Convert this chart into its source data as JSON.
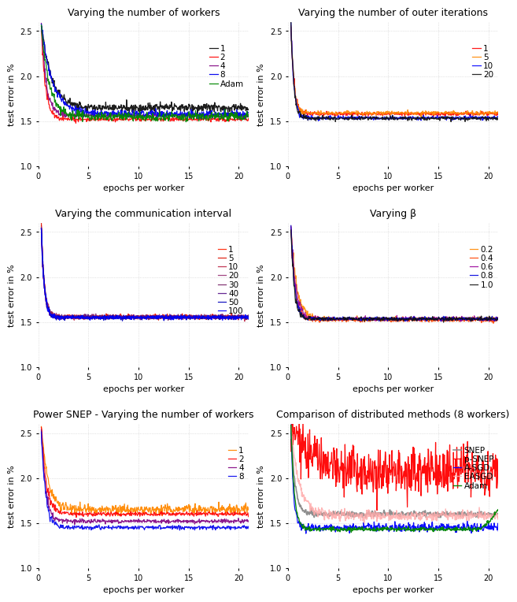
{
  "titles": [
    "Varying the number of workers",
    "Varying the number of outer iterations",
    "Varying the communication interval",
    "Varying β",
    "Power SNEP - Varying the number of workers",
    "Comparison of distributed methods (8 workers)"
  ],
  "xlabel": "epochs per worker",
  "ylabel": "test error in %",
  "xlim": [
    0,
    21
  ],
  "ylim": [
    1.0,
    2.6
  ],
  "yticks": [
    1.0,
    1.5,
    2.0,
    2.5
  ],
  "xticks": [
    0,
    5,
    10,
    15,
    20
  ],
  "plot1_labels": [
    "1",
    "2",
    "4",
    "8",
    "Adam"
  ],
  "plot1_colors": [
    "#111111",
    "#ff0000",
    "#800080",
    "#0000ee",
    "#008800"
  ],
  "plot1_levels": [
    1.65,
    1.52,
    1.56,
    1.58,
    1.55
  ],
  "plot1_speeds": [
    1.2,
    2.5,
    2.0,
    1.2,
    1.5
  ],
  "plot1_start": 2.57,
  "plot2_labels": [
    "1",
    "5",
    "10",
    "20"
  ],
  "plot2_colors": [
    "#ff0000",
    "#ff8800",
    "#0000ff",
    "#111111"
  ],
  "plot2_levels": [
    1.58,
    1.59,
    1.535,
    1.53
  ],
  "plot2_speeds": [
    3.5,
    3.5,
    3.5,
    3.5
  ],
  "plot2_start": 2.57,
  "plot3_labels": [
    "1",
    "5",
    "10",
    "20",
    "30",
    "40",
    "50",
    "100"
  ],
  "plot3_colors": [
    "#ff2200",
    "#dd1100",
    "#bb2244",
    "#993377",
    "#772266",
    "#551188",
    "#0000bb",
    "#0000ff"
  ],
  "plot3_levels": [
    1.56,
    1.555,
    1.555,
    1.555,
    1.555,
    1.555,
    1.55,
    1.55
  ],
  "plot3_speeds": [
    3.5,
    3.5,
    3.5,
    3.5,
    3.5,
    3.5,
    3.5,
    3.5
  ],
  "plot3_start": 2.56,
  "plot4_labels": [
    "0.2",
    "0.4",
    "0.6",
    "0.8",
    "1.0"
  ],
  "plot4_colors": [
    "#ff8800",
    "#ff4400",
    "#990099",
    "#0000dd",
    "#111111"
  ],
  "plot4_levels": [
    1.535,
    1.52,
    1.535,
    1.535,
    1.535
  ],
  "plot4_speeds": [
    1.8,
    2.5,
    2.2,
    2.8,
    3.2
  ],
  "plot4_start": 2.56,
  "plot5_labels": [
    "1",
    "2",
    "4",
    "8"
  ],
  "plot5_colors": [
    "#ff8800",
    "#ff0000",
    "#800080",
    "#0000ee"
  ],
  "plot5_levels": [
    1.65,
    1.6,
    1.52,
    1.45
  ],
  "plot5_speeds": [
    1.5,
    2.0,
    2.5,
    2.5
  ],
  "plot5_start": 2.56,
  "plot6_labels": [
    "SNEP",
    "p-SNEP",
    "A-SGD",
    "EASGD",
    "Adam"
  ],
  "plot6_colors": [
    "#888888",
    "#ff0000",
    "#0000ff",
    "#ffaaaa",
    "#008800"
  ],
  "plot6_levels": [
    1.6,
    2.08,
    1.45,
    1.58,
    1.43
  ],
  "plot6_speeds": [
    2.5,
    0.5,
    4.0,
    1.2,
    3.0
  ],
  "plot6_start": 2.57,
  "bg_color": "#ffffff",
  "grid_color": "#cccccc",
  "title_fontsize": 9,
  "label_fontsize": 8,
  "tick_fontsize": 7,
  "legend_fontsize": 7.5
}
